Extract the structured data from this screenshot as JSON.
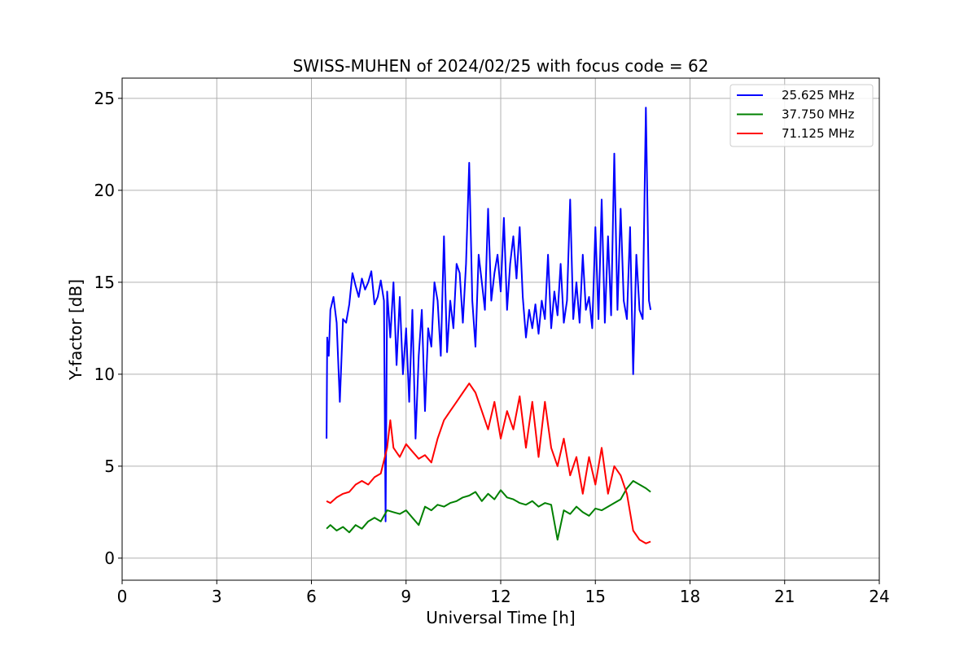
{
  "chart_data": {
    "type": "line",
    "title": "SWISS-MUHEN of 2024/02/25 with focus code = 62",
    "xlabel": "Universal Time [h]",
    "ylabel": "Y-factor [dB]",
    "xlim": [
      0,
      24
    ],
    "ylim": [
      -1.2,
      26.1
    ],
    "xticks": [
      0,
      3,
      6,
      9,
      12,
      15,
      18,
      21,
      24
    ],
    "yticks": [
      0,
      5,
      10,
      15,
      20,
      25
    ],
    "grid": true,
    "legend_position": "top-right",
    "series": [
      {
        "name": "25.625 MHz",
        "color": "#0000ff",
        "x": [
          6.48,
          6.5,
          6.55,
          6.6,
          6.7,
          6.8,
          6.9,
          7.0,
          7.1,
          7.2,
          7.3,
          7.4,
          7.5,
          7.6,
          7.7,
          7.8,
          7.9,
          8.0,
          8.1,
          8.2,
          8.3,
          8.35,
          8.4,
          8.5,
          8.6,
          8.7,
          8.8,
          8.9,
          9.0,
          9.1,
          9.2,
          9.3,
          9.4,
          9.5,
          9.6,
          9.7,
          9.8,
          9.9,
          10.0,
          10.1,
          10.2,
          10.3,
          10.4,
          10.5,
          10.6,
          10.7,
          10.8,
          10.9,
          11.0,
          11.1,
          11.2,
          11.3,
          11.4,
          11.5,
          11.6,
          11.7,
          11.8,
          11.9,
          12.0,
          12.1,
          12.2,
          12.3,
          12.4,
          12.5,
          12.6,
          12.7,
          12.8,
          12.9,
          13.0,
          13.1,
          13.2,
          13.3,
          13.4,
          13.5,
          13.6,
          13.7,
          13.8,
          13.9,
          14.0,
          14.1,
          14.2,
          14.3,
          14.4,
          14.5,
          14.6,
          14.7,
          14.8,
          14.9,
          15.0,
          15.1,
          15.2,
          15.3,
          15.4,
          15.5,
          15.6,
          15.7,
          15.8,
          15.9,
          16.0,
          16.1,
          16.2,
          16.3,
          16.4,
          16.5,
          16.6,
          16.7,
          16.75
        ],
        "y": [
          6.5,
          12.0,
          11.0,
          13.5,
          14.2,
          12.8,
          8.5,
          13.0,
          12.8,
          13.8,
          15.5,
          14.8,
          14.2,
          15.2,
          14.6,
          15.0,
          15.6,
          13.8,
          14.2,
          15.1,
          14.0,
          2.0,
          14.5,
          12.0,
          15.0,
          10.5,
          14.2,
          10.0,
          12.5,
          8.5,
          13.5,
          6.5,
          11.0,
          13.5,
          8.0,
          12.5,
          11.5,
          15.0,
          14.0,
          11.0,
          17.5,
          11.2,
          14.0,
          12.5,
          16.0,
          15.5,
          12.8,
          16.0,
          21.5,
          14.0,
          11.5,
          16.5,
          15.0,
          13.5,
          19.0,
          14.0,
          15.5,
          16.5,
          14.5,
          18.5,
          13.5,
          16.0,
          17.5,
          15.2,
          18.0,
          14.2,
          12.0,
          13.5,
          12.5,
          13.8,
          12.2,
          14.0,
          13.0,
          16.5,
          12.5,
          14.5,
          13.2,
          16.0,
          12.8,
          14.0,
          19.5,
          13.0,
          15.0,
          12.8,
          16.5,
          13.5,
          14.2,
          12.5,
          18.0,
          13.0,
          19.5,
          12.8,
          17.5,
          13.2,
          22.0,
          13.5,
          19.0,
          14.0,
          13.0,
          18.0,
          10.0,
          16.5,
          13.5,
          13.0,
          24.5,
          14.0,
          13.5
        ]
      },
      {
        "name": "37.750 MHz",
        "color": "#008000",
        "x": [
          6.48,
          6.6,
          6.8,
          7.0,
          7.2,
          7.4,
          7.6,
          7.8,
          8.0,
          8.2,
          8.4,
          8.6,
          8.8,
          9.0,
          9.2,
          9.4,
          9.6,
          9.8,
          10.0,
          10.2,
          10.4,
          10.6,
          10.8,
          11.0,
          11.2,
          11.4,
          11.6,
          11.8,
          12.0,
          12.2,
          12.4,
          12.6,
          12.8,
          13.0,
          13.2,
          13.4,
          13.6,
          13.8,
          14.0,
          14.2,
          14.4,
          14.6,
          14.8,
          15.0,
          15.2,
          15.4,
          15.6,
          15.8,
          16.0,
          16.2,
          16.4,
          16.6,
          16.75
        ],
        "y": [
          1.6,
          1.8,
          1.5,
          1.7,
          1.4,
          1.8,
          1.6,
          2.0,
          2.2,
          2.0,
          2.6,
          2.5,
          2.4,
          2.6,
          2.2,
          1.8,
          2.8,
          2.6,
          2.9,
          2.8,
          3.0,
          3.1,
          3.3,
          3.4,
          3.6,
          3.1,
          3.5,
          3.2,
          3.7,
          3.3,
          3.2,
          3.0,
          2.9,
          3.1,
          2.8,
          3.0,
          2.9,
          1.0,
          2.6,
          2.4,
          2.8,
          2.5,
          2.3,
          2.7,
          2.6,
          2.8,
          3.0,
          3.2,
          3.8,
          4.2,
          4.0,
          3.8,
          3.6
        ]
      },
      {
        "name": "71.125 MHz",
        "color": "#ff0000",
        "x": [
          6.48,
          6.6,
          6.8,
          7.0,
          7.2,
          7.4,
          7.6,
          7.8,
          8.0,
          8.2,
          8.4,
          8.5,
          8.6,
          8.8,
          9.0,
          9.2,
          9.4,
          9.6,
          9.8,
          10.0,
          10.2,
          10.4,
          10.6,
          10.8,
          11.0,
          11.2,
          11.4,
          11.6,
          11.8,
          12.0,
          12.2,
          12.4,
          12.6,
          12.8,
          13.0,
          13.2,
          13.4,
          13.6,
          13.8,
          14.0,
          14.2,
          14.4,
          14.6,
          14.8,
          15.0,
          15.2,
          15.4,
          15.6,
          15.8,
          16.0,
          16.2,
          16.4,
          16.6,
          16.75
        ],
        "y": [
          3.1,
          3.0,
          3.3,
          3.5,
          3.6,
          4.0,
          4.2,
          4.0,
          4.4,
          4.6,
          6.0,
          7.5,
          6.0,
          5.5,
          6.2,
          5.8,
          5.4,
          5.6,
          5.2,
          6.5,
          7.5,
          8.0,
          8.5,
          9.0,
          9.5,
          9.0,
          8.0,
          7.0,
          8.5,
          6.5,
          8.0,
          7.0,
          8.8,
          6.0,
          8.5,
          5.5,
          8.5,
          6.0,
          5.0,
          6.5,
          4.5,
          5.5,
          3.5,
          5.5,
          4.0,
          6.0,
          3.5,
          5.0,
          4.5,
          3.5,
          1.5,
          1.0,
          0.8,
          0.9
        ]
      }
    ]
  }
}
